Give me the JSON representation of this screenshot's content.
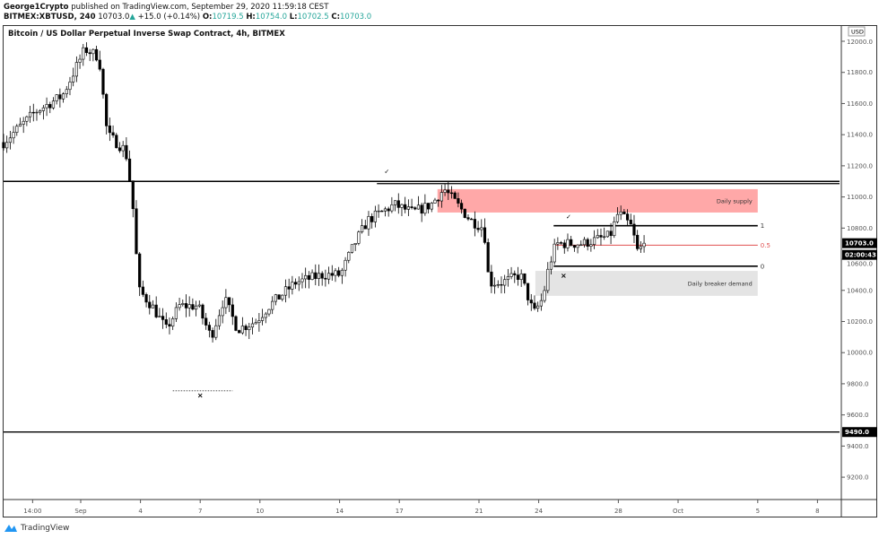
{
  "header": {
    "author": "George1Crypto",
    "published": "published on TradingView.com, September 29, 2020 11:59:18 CEST",
    "symbol": "BITMEX:XBTUSD, 240",
    "last": "10703.0",
    "change": "+15.0 (+0.14%)",
    "o_label": "O:",
    "o": "10719.5",
    "h_label": "H:",
    "h": "10754.0",
    "l_label": "L:",
    "l": "10702.5",
    "c_label": "C:",
    "c": "10703.0"
  },
  "chart_title": "Bitcoin / US Dollar Perpetual Inverse Swap Contract, 4h, BITMEX",
  "brand": "TradingView",
  "colors": {
    "supply": "#ffa8a8",
    "demand": "#e4e4e4",
    "fib_mid": "#e05050",
    "up_candle": "#ffffff",
    "down_candle": "#000000"
  },
  "chart_data": {
    "type": "candlestick",
    "currency": "USD",
    "y_ticks": [
      9200,
      9400,
      9600,
      9800,
      10000,
      10200,
      10400,
      10600,
      10800,
      11000,
      11200,
      11400,
      11600,
      11800,
      12000
    ],
    "x_ticks": [
      "14:00",
      "Sep",
      "4",
      "7",
      "10",
      "14",
      "17",
      "21",
      "24",
      "28",
      "Oct",
      "5",
      "8"
    ],
    "x_tick_dates": [
      "2020-08-29 14:00",
      "2020-09-01",
      "2020-09-04",
      "2020-09-07",
      "2020-09-10",
      "2020-09-14",
      "2020-09-17",
      "2020-09-21",
      "2020-09-24",
      "2020-09-28",
      "2020-10-01",
      "2020-10-05",
      "2020-10-08"
    ],
    "price_path": [
      [
        "2020-08-28 03:00",
        11350
      ],
      [
        "2020-08-29 18:00",
        11550
      ],
      [
        "2020-08-31 02:00",
        11650
      ],
      [
        "2020-09-01 05:00",
        11950
      ],
      [
        "2020-09-01 22:00",
        11900
      ],
      [
        "2020-09-02 08:00",
        11400
      ],
      [
        "2020-09-03 06:00",
        11300
      ],
      [
        "2020-09-03 14:00",
        11000
      ],
      [
        "2020-09-03 22:00",
        10400
      ],
      [
        "2020-09-04 14:00",
        10300
      ],
      [
        "2020-09-05 07:00",
        10150
      ],
      [
        "2020-09-05 23:00",
        10300
      ],
      [
        "2020-09-06 21:00",
        10300
      ],
      [
        "2020-09-07 13:00",
        10100
      ],
      [
        "2020-09-08 05:00",
        10350
      ],
      [
        "2020-09-08 21:00",
        10150
      ],
      [
        "2020-09-09 19:00",
        10200
      ],
      [
        "2020-09-10 11:00",
        10300
      ],
      [
        "2020-09-11 19:00",
        10450
      ],
      [
        "2020-09-13 04:00",
        10500
      ],
      [
        "2020-09-14 01:00",
        10500
      ],
      [
        "2020-09-14 18:00",
        10700
      ],
      [
        "2020-09-15 10:00",
        10850
      ],
      [
        "2020-09-16 02:00",
        10900
      ],
      [
        "2020-09-16 18:00",
        10950
      ],
      [
        "2020-09-17 16:00",
        10900
      ],
      [
        "2020-09-18 14:00",
        10950
      ],
      [
        "2020-09-19 06:00",
        11050
      ],
      [
        "2020-09-19 22:00",
        10950
      ],
      [
        "2020-09-20 14:00",
        10850
      ],
      [
        "2020-09-21 06:00",
        10800
      ],
      [
        "2020-09-21 12:00",
        10450
      ],
      [
        "2020-09-22 04:00",
        10450
      ],
      [
        "2020-09-23 02:00",
        10500
      ],
      [
        "2020-09-23 18:00",
        10250
      ],
      [
        "2020-09-24 05:00",
        10350
      ],
      [
        "2020-09-24 12:00",
        10550
      ],
      [
        "2020-09-24 21:00",
        10700
      ],
      [
        "2020-09-26 05:00",
        10700
      ],
      [
        "2020-09-27 14:00",
        10750
      ],
      [
        "2020-09-28 00:00",
        10900
      ],
      [
        "2020-09-28 17:00",
        10800
      ],
      [
        "2020-09-28 22:00",
        10650
      ],
      [
        "2020-09-29 10:00",
        10703
      ]
    ],
    "last_price_label": "10703.0",
    "countdown": "02:00:43",
    "level_label": "9490.0",
    "annotations": {
      "resistance": 11100,
      "resistance2_start": "2020-09-15 21:00",
      "support": 9490,
      "supply": {
        "label": "Daily supply",
        "start": "2020-09-18 22:00",
        "end": "2020-10-05",
        "top": 11050,
        "bottom": 10900
      },
      "demand": {
        "label": "Daily breaker demand",
        "start": "2020-09-23 20:00",
        "end": "2020-10-05",
        "top": 10525,
        "bottom": 10365
      },
      "fib": {
        "start": "2020-09-24 18:00",
        "end": "2020-10-05",
        "levels": [
          {
            "label": "1",
            "price": 10815
          },
          {
            "label": "0.5",
            "price": 10690
          },
          {
            "label": "0",
            "price": 10555
          }
        ]
      },
      "low_line": {
        "start": "2020-09-05 15:00",
        "end": "2020-09-08 15:00",
        "price": 9755
      },
      "crosses": [
        [
          "2020-09-07 00:00",
          9710
        ],
        [
          "2020-09-25 06:00",
          10480
        ]
      ],
      "checks": [
        [
          "2020-09-16 09:00",
          11150
        ],
        [
          "2020-09-25 12:00",
          10860
        ]
      ]
    }
  }
}
